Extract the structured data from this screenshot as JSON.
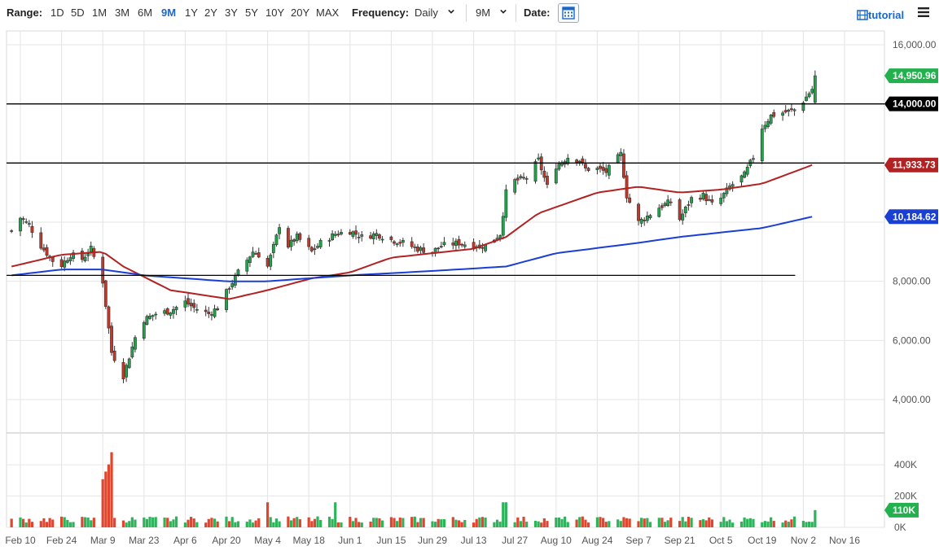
{
  "toolbar": {
    "range_label": "Range:",
    "ranges": [
      "1D",
      "5D",
      "1M",
      "3M",
      "6M",
      "9M",
      "1Y",
      "2Y",
      "3Y",
      "5Y",
      "10Y",
      "20Y",
      "MAX"
    ],
    "active_range": "9M",
    "frequency_label": "Frequency:",
    "frequency_value": "Daily",
    "period_value": "9M",
    "date_label": "Date:",
    "tutorial_label": "tutorial",
    "accent_color": "#1a66c9"
  },
  "chart_data": {
    "type": "candlestick",
    "y_axis": {
      "ticks": [
        "16,000.00",
        "8,000.00",
        "6,000.00",
        "4,000.00"
      ],
      "range": [
        2900,
        16300
      ]
    },
    "x_axis": {
      "ticks": [
        "Feb 10",
        "Feb 24",
        "Mar 9",
        "Mar 23",
        "Apr 6",
        "Apr 20",
        "May 4",
        "May 18",
        "Jun 1",
        "Jun 15",
        "Jun 29",
        "Jul 13",
        "Jul 27",
        "Aug 10",
        "Aug 24",
        "Sep 7",
        "Sep 21",
        "Oct 5",
        "Oct 19",
        "Nov 2",
        "Nov 16"
      ]
    },
    "volume_axis": {
      "ticks": [
        "400K",
        "200K",
        "0K"
      ],
      "max": 520000
    },
    "price_tags": [
      {
        "label": "14,950.96",
        "value": 14950.96,
        "color": "#22b14c"
      },
      {
        "label": "14,000.00",
        "value": 14000,
        "color": "#000000"
      },
      {
        "label": "11,933.73",
        "value": 11933.73,
        "color": "#b22222"
      },
      {
        "label": "10,184.62",
        "value": 10184.62,
        "color": "#1a3fd4"
      }
    ],
    "volume_tag": {
      "label": "110K",
      "value": 110000,
      "color": "#22b14c"
    },
    "horizontal_lines": [
      {
        "value": 14000
      },
      {
        "value": 12000
      },
      {
        "value": 8200,
        "end": "Nov 2"
      }
    ],
    "ohlc_anchors": {
      "dates": [
        "Feb 7",
        "Feb 10",
        "Feb 13",
        "Feb 17",
        "Feb 21",
        "Feb 24",
        "Feb 27",
        "Mar 2",
        "Mar 5",
        "Mar 9",
        "Mar 12",
        "Mar 16",
        "Mar 20",
        "Mar 23",
        "Mar 27",
        "Apr 1",
        "Apr 6",
        "Apr 9",
        "Apr 14",
        "Apr 17",
        "Apr 21",
        "Apr 24",
        "Apr 29",
        "May 1",
        "May 4",
        "May 7",
        "May 8",
        "May 11",
        "May 14",
        "May 19",
        "May 22",
        "May 27",
        "Jun 1",
        "Jun 5",
        "Jun 10",
        "Jun 15",
        "Jun 19",
        "Jun 24",
        "Jun 29",
        "Jul 2",
        "Jul 8",
        "Jul 13",
        "Jul 17",
        "Jul 22",
        "Jul 24",
        "Jul 27",
        "Jul 31",
        "Aug 4",
        "Aug 7",
        "Aug 10",
        "Aug 14",
        "Aug 18",
        "Aug 20",
        "Aug 24",
        "Aug 27",
        "Sep 1",
        "Sep 3",
        "Sep 7",
        "Sep 10",
        "Sep 14",
        "Sep 18",
        "Sep 21",
        "Sep 25",
        "Sep 29",
        "Oct 2",
        "Oct 5",
        "Oct 8",
        "Oct 13",
        "Oct 16",
        "Oct 19",
        "Oct 22",
        "Oct 26",
        "Oct 30",
        "Nov 2",
        "Nov 5",
        "Nov 6"
      ],
      "closes": [
        9700,
        10150,
        9900,
        9200,
        8700,
        8550,
        8900,
        8750,
        9100,
        8000,
        5600,
        4800,
        6100,
        6700,
        6900,
        7000,
        7300,
        7100,
        6900,
        7100,
        7800,
        8300,
        9000,
        8900,
        8500,
        9500,
        9900,
        9200,
        9500,
        9000,
        9300,
        9600,
        9700,
        9500,
        9600,
        9400,
        9300,
        9100,
        9000,
        9200,
        9300,
        9200,
        9200,
        9600,
        11000,
        11400,
        11500,
        12100,
        11200,
        11900,
        12200,
        12100,
        11800,
        11800,
        11700,
        12300,
        10900,
        10000,
        10200,
        10500,
        10700,
        10100,
        10800,
        10900,
        10600,
        10800,
        11200,
        11600,
        12200,
        13200,
        13600,
        13700,
        13800,
        14100,
        14500,
        14950.96
      ],
      "ma_red": {
        "dates": [
          "Feb 7",
          "Feb 24",
          "Mar 9",
          "Mar 16",
          "Apr 1",
          "Apr 21",
          "May 4",
          "May 19",
          "Jun 1",
          "Jun 15",
          "Jul 13",
          "Jul 24",
          "Aug 4",
          "Aug 24",
          "Sep 7",
          "Sep 21",
          "Oct 5",
          "Oct 19",
          "Nov 5"
        ],
        "values": [
          8500,
          8900,
          9000,
          8500,
          7700,
          7400,
          7700,
          8100,
          8300,
          8800,
          9100,
          9500,
          10300,
          11000,
          11200,
          11000,
          11100,
          11300,
          11933.73
        ]
      },
      "ma_blue": {
        "dates": [
          "Feb 7",
          "Feb 24",
          "Mar 9",
          "Mar 23",
          "Apr 20",
          "May 4",
          "Jun 1",
          "Jun 29",
          "Jul 24",
          "Aug 10",
          "Sep 7",
          "Sep 21",
          "Oct 5",
          "Oct 19",
          "Nov 5"
        ],
        "values": [
          8200,
          8400,
          8400,
          8200,
          8000,
          8000,
          8200,
          8350,
          8500,
          8950,
          9300,
          9500,
          9650,
          9800,
          10184.62
        ]
      }
    }
  }
}
